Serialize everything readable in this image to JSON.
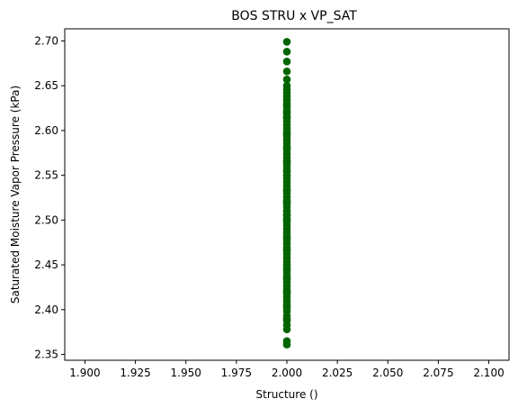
{
  "chart_data": {
    "type": "scatter",
    "title": "BOS STRU x VP_SAT",
    "xlabel": "Structure ()",
    "ylabel": "Saturated Moisture Vapor Pressure (kPa)",
    "xlim": [
      1.89,
      2.11
    ],
    "ylim": [
      2.3435,
      2.7135
    ],
    "grid": false,
    "marker_color": "#006400",
    "x_ticks": [
      {
        "value": 1.9,
        "label": "1.900"
      },
      {
        "value": 1.925,
        "label": "1.925"
      },
      {
        "value": 1.95,
        "label": "1.950"
      },
      {
        "value": 1.975,
        "label": "1.975"
      },
      {
        "value": 2.0,
        "label": "2.000"
      },
      {
        "value": 2.025,
        "label": "2.025"
      },
      {
        "value": 2.05,
        "label": "2.050"
      },
      {
        "value": 2.075,
        "label": "2.075"
      },
      {
        "value": 2.1,
        "label": "2.100"
      }
    ],
    "y_ticks": [
      {
        "value": 2.35,
        "label": "2.35"
      },
      {
        "value": 2.4,
        "label": "2.40"
      },
      {
        "value": 2.45,
        "label": "2.45"
      },
      {
        "value": 2.5,
        "label": "2.50"
      },
      {
        "value": 2.55,
        "label": "2.55"
      },
      {
        "value": 2.6,
        "label": "2.60"
      },
      {
        "value": 2.65,
        "label": "2.65"
      },
      {
        "value": 2.7,
        "label": "2.70"
      }
    ],
    "series": [
      {
        "x": [
          2,
          2,
          2,
          2,
          2,
          2,
          2,
          2,
          2,
          2,
          2,
          2,
          2,
          2,
          2,
          2,
          2,
          2,
          2,
          2,
          2,
          2,
          2,
          2,
          2,
          2,
          2,
          2,
          2,
          2,
          2,
          2,
          2,
          2,
          2,
          2,
          2,
          2,
          2,
          2,
          2,
          2,
          2,
          2,
          2,
          2,
          2,
          2,
          2,
          2,
          2,
          2,
          2,
          2,
          2,
          2,
          2,
          2,
          2,
          2,
          2,
          2,
          2,
          2,
          2,
          2,
          2,
          2,
          2,
          2,
          2,
          2,
          2,
          2,
          2,
          2,
          2,
          2,
          2,
          2,
          2,
          2,
          2,
          2,
          2,
          2,
          2,
          2,
          2,
          2,
          2,
          2,
          2
        ],
        "y": [
          2.361,
          2.365,
          2.378,
          2.383,
          2.388,
          2.393,
          2.398,
          2.402,
          2.406,
          2.41,
          2.414,
          2.418,
          2.422,
          2.426,
          2.43,
          2.434,
          2.438,
          2.442,
          2.446,
          2.45,
          2.454,
          2.458,
          2.462,
          2.466,
          2.47,
          2.474,
          2.478,
          2.482,
          2.486,
          2.49,
          2.494,
          2.498,
          2.502,
          2.506,
          2.51,
          2.514,
          2.518,
          2.522,
          2.526,
          2.53,
          2.534,
          2.538,
          2.542,
          2.546,
          2.55,
          2.554,
          2.558,
          2.562,
          2.566,
          2.57,
          2.574,
          2.578,
          2.582,
          2.586,
          2.59,
          2.594,
          2.598,
          2.602,
          2.606,
          2.61,
          2.614,
          2.618,
          2.622,
          2.626,
          2.63,
          2.634,
          2.638,
          2.642,
          2.646,
          2.65,
          2.657,
          2.666,
          2.677,
          2.688,
          2.699,
          2.404,
          2.436,
          2.468,
          2.5,
          2.532,
          2.564,
          2.596,
          2.628,
          2.39,
          2.42,
          2.48,
          2.52,
          2.58,
          2.62,
          2.445,
          2.555,
          2.505,
          2.615
        ]
      }
    ]
  }
}
